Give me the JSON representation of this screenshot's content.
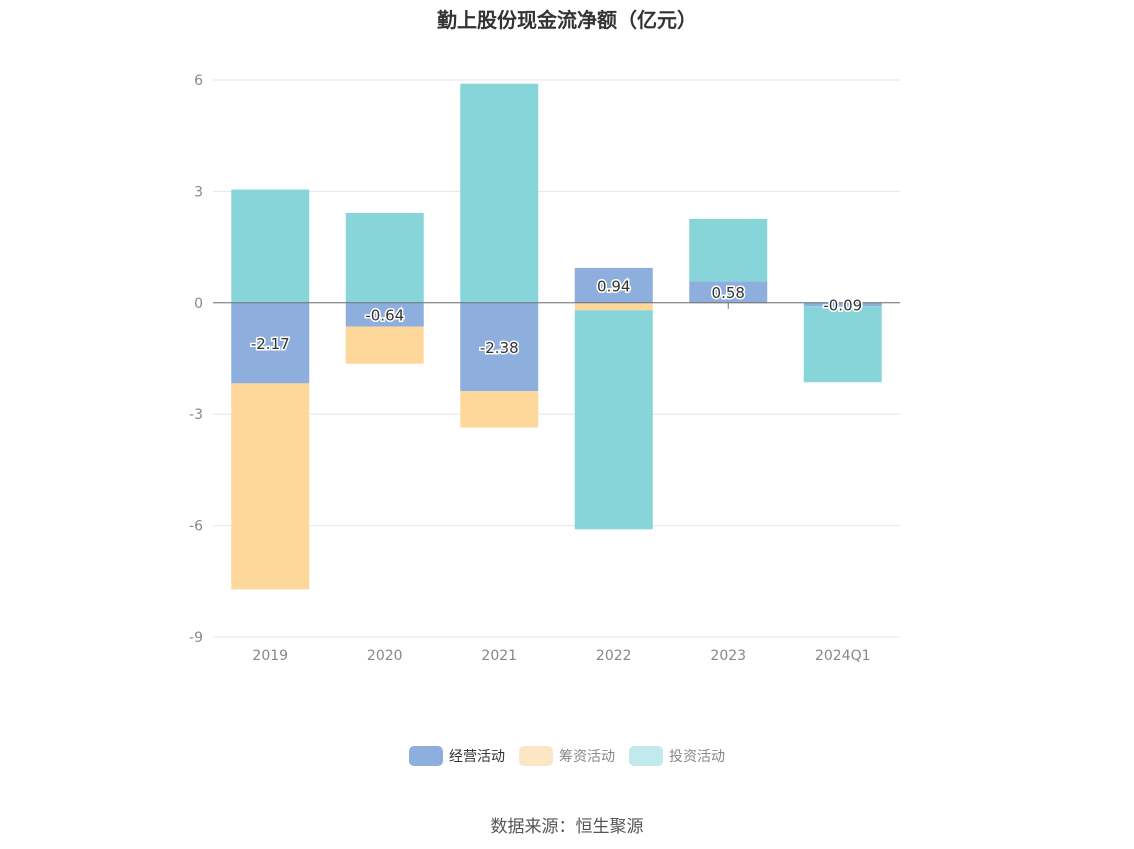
{
  "chart_data": {
    "type": "bar",
    "stacked": true,
    "title": "勤上股份现金流净额（亿元）",
    "xlabel": "",
    "ylabel": "",
    "ylim": [
      -9,
      6
    ],
    "yticks": [
      6,
      3,
      0,
      -3,
      -6,
      -9
    ],
    "yticks_labels": [
      "6",
      "3",
      "0",
      "-3",
      "-6",
      "-9"
    ],
    "categories": [
      "2019",
      "2020",
      "2021",
      "2022",
      "2023",
      "2024Q1"
    ],
    "series": [
      {
        "name": "经营活动",
        "color": "#8eaedd",
        "values": [
          -2.17,
          -0.64,
          -2.38,
          0.94,
          0.58,
          -0.09
        ],
        "labels": [
          "-2.17",
          "-0.64",
          "-2.38",
          "0.94",
          "0.58",
          "-0.09"
        ]
      },
      {
        "name": "筹资活动",
        "color": "#fdd89a",
        "values": [
          -5.55,
          -1.0,
          -0.98,
          -0.2,
          -0.02,
          0.0
        ]
      },
      {
        "name": "投资活动",
        "color": "#88d5d9",
        "values": [
          3.05,
          2.42,
          5.9,
          -5.9,
          1.68,
          -2.05
        ]
      }
    ],
    "legend": [
      "经营活动",
      "筹资活动",
      "投资活动"
    ],
    "legend_colors": [
      "#8eaedd",
      "#fde6c5",
      "#c2e9eb"
    ],
    "legend_position": "bottom",
    "grid": true
  },
  "source": "数据来源：恒生聚源"
}
